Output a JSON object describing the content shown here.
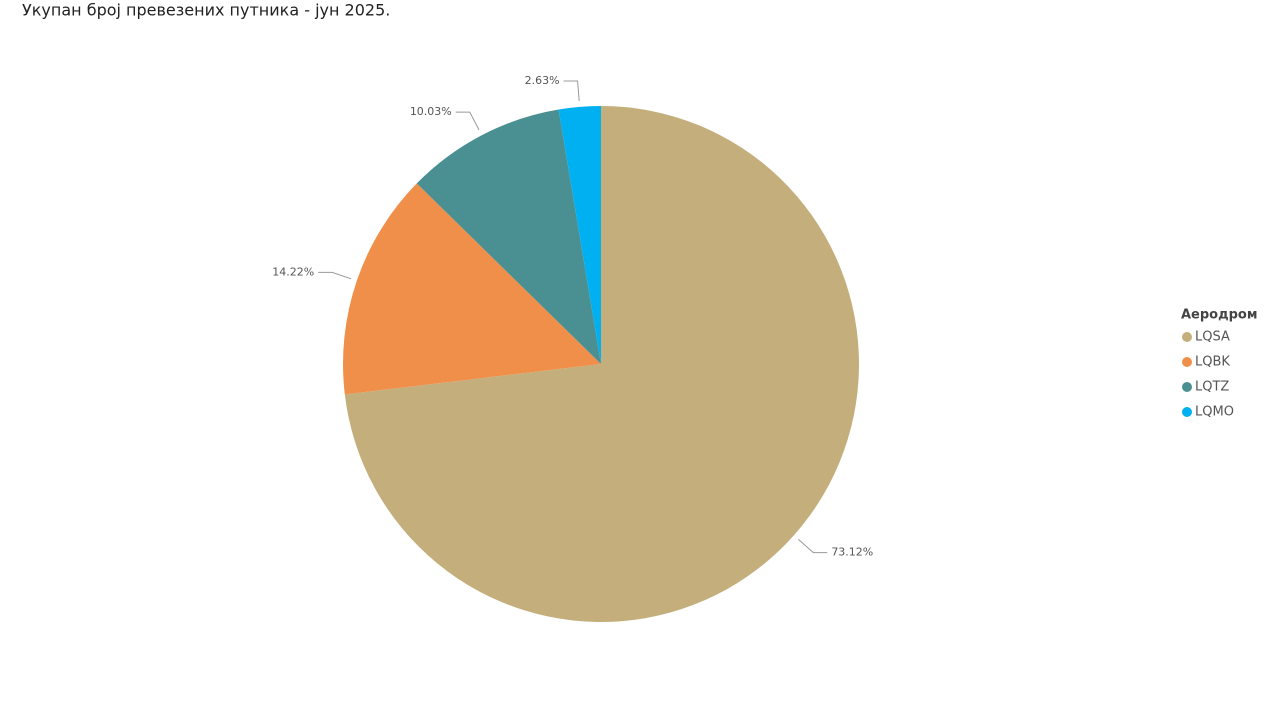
{
  "chart_data": {
    "type": "pie",
    "title": "Укупан број превезених путника - јун 2025.",
    "legend_title": "Аеродром",
    "categories": [
      "LQSA",
      "LQBK",
      "LQTZ",
      "LQMO"
    ],
    "values": [
      73.12,
      14.22,
      10.03,
      2.63
    ],
    "value_labels": [
      "73.12%",
      "14.22%",
      "10.03%",
      "2.63%"
    ],
    "colors": [
      "#c4af7c",
      "#f08f4a",
      "#4a8f91",
      "#01b0f0"
    ],
    "legend_position": "right"
  }
}
